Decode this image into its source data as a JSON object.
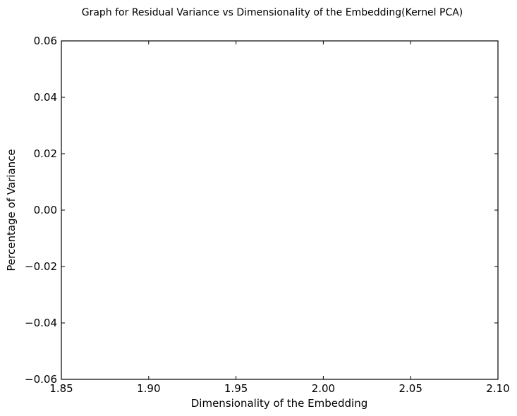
{
  "chart_data": {
    "type": "line",
    "title": "Graph for Residual Variance vs Dimensionality of the Embedding(Kernel PCA)",
    "xlabel": "Dimensionality of the Embedding",
    "ylabel": "Percentage of Variance",
    "xlim": [
      1.85,
      2.1
    ],
    "ylim": [
      -0.06,
      0.06
    ],
    "x_ticks": [
      "1.85",
      "1.90",
      "1.95",
      "2.00",
      "2.05",
      "2.10"
    ],
    "y_ticks": [
      "−0.06",
      "−0.04",
      "−0.02",
      "0.00",
      "0.02",
      "0.04",
      "0.06"
    ],
    "grid": false,
    "series": []
  }
}
